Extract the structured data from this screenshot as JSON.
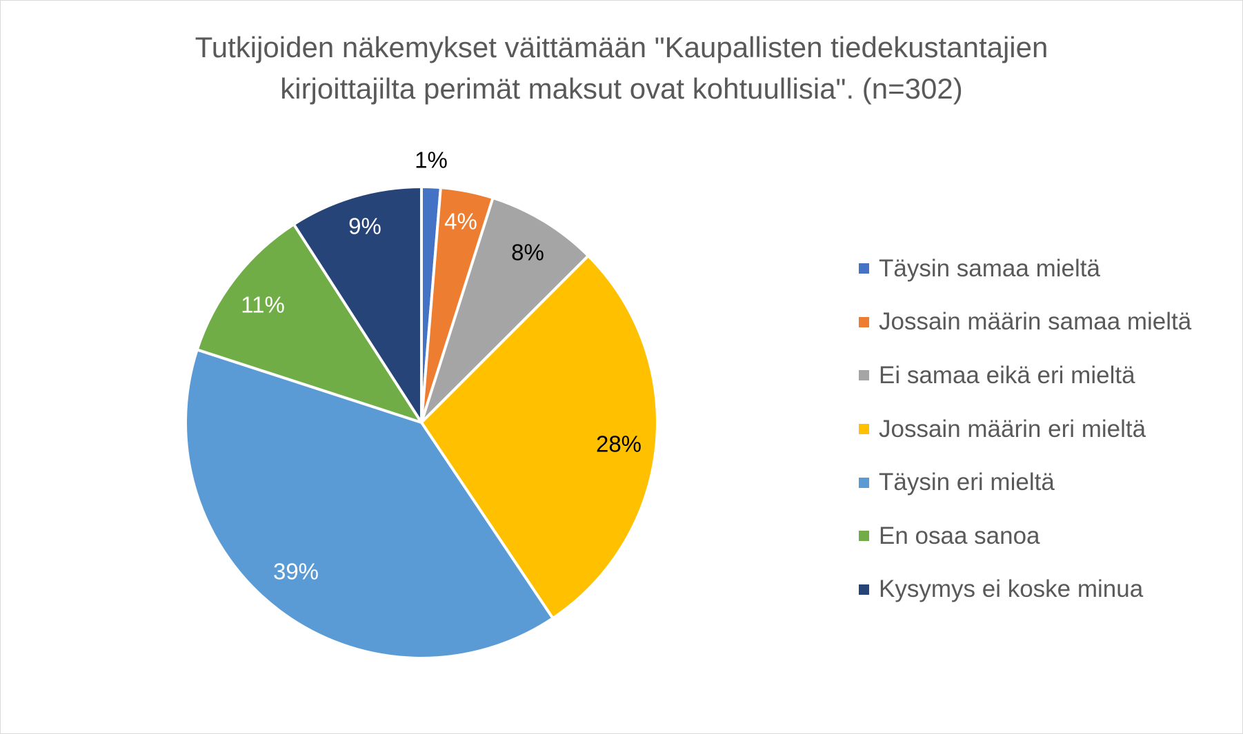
{
  "chart_data": {
    "type": "pie",
    "title_lines": [
      "Tutkijoiden näkemykset väittämään \"Kaupallisten tiedekustantajien",
      "kirjoittajilta perimät maksut ovat kohtuullisia\". (n=302)"
    ],
    "legend_position": "right",
    "slices": [
      {
        "name": "Täysin samaa mieltä",
        "value": 1.3,
        "label": "1%",
        "color": "#4472C4",
        "label_color": "#000000"
      },
      {
        "name": "Jossain määrin samaa mieltä",
        "value": 3.6,
        "label": "4%",
        "color": "#ED7D31",
        "label_color": "#ffffff"
      },
      {
        "name": "Ei samaa eikä eri mieltä",
        "value": 7.6,
        "label": "8%",
        "color": "#A5A5A5",
        "label_color": "#000000"
      },
      {
        "name": "Jossain määrin eri mieltä",
        "value": 28.1,
        "label": "28%",
        "color": "#FFC000",
        "label_color": "#000000"
      },
      {
        "name": "Täysin eri mieltä",
        "value": 39.4,
        "label": "39%",
        "color": "#5B9BD5",
        "label_color": "#ffffff"
      },
      {
        "name": "En osaa sanoa",
        "value": 10.9,
        "label": "11%",
        "color": "#70AD47",
        "label_color": "#ffffff"
      },
      {
        "name": "Kysymys ei koske minua",
        "value": 9.1,
        "label": "9%",
        "color": "#264478",
        "label_color": "#ffffff"
      }
    ]
  }
}
